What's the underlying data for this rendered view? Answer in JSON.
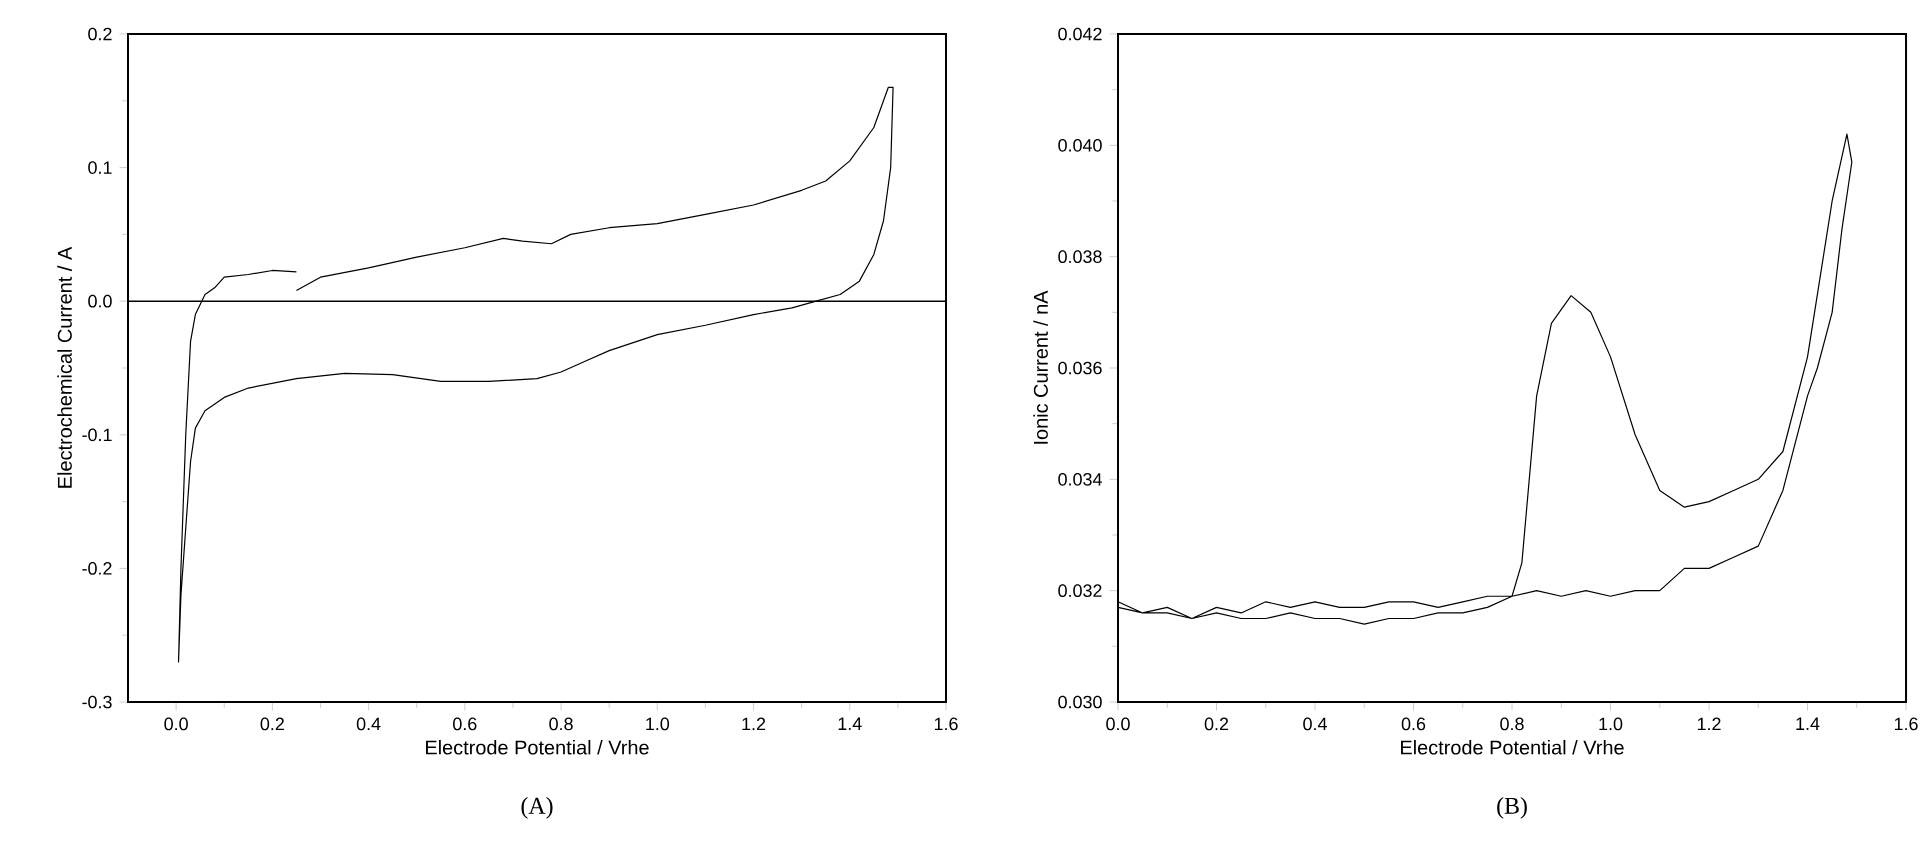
{
  "chart_data": [
    {
      "type": "line",
      "xlabel": "Electrode Potential / Vrhe",
      "ylabel": "Electrochemical Current / A",
      "annotations": [
        "(A)"
      ],
      "xlim": [
        -0.1,
        1.6
      ],
      "ylim": [
        -0.3,
        0.2
      ],
      "xticks": [
        {
          "value": 0,
          "label": "0.0"
        },
        {
          "value": 0.2,
          "label": "0.2"
        },
        {
          "value": 0.4,
          "label": "0.4"
        },
        {
          "value": 0.6,
          "label": "0.6"
        },
        {
          "value": 0.8,
          "label": "0.8"
        },
        {
          "value": 1,
          "label": "1.0"
        },
        {
          "value": 1.2,
          "label": "1.2"
        },
        {
          "value": 1.4,
          "label": "1.4"
        },
        {
          "value": 1.6,
          "label": "1.6"
        }
      ],
      "yticks": [
        {
          "value": -0.3,
          "label": "-0.3"
        },
        {
          "value": -0.2,
          "label": "-0.2"
        },
        {
          "value": -0.1,
          "label": "-0.1"
        },
        {
          "value": 0,
          "label": "0.0"
        },
        {
          "value": 0.1,
          "label": "0.1"
        },
        {
          "value": 0.2,
          "label": "0.2"
        }
      ],
      "ref_lines": [
        {
          "axis": "y",
          "value": 0,
          "color": "#000000"
        }
      ],
      "series": [
        {
          "color": "#000000",
          "x": [
            0.25,
            0.3,
            0.4,
            0.5,
            0.6,
            0.68,
            0.72,
            0.78,
            0.82,
            0.9,
            1.0,
            1.1,
            1.2,
            1.3,
            1.35,
            1.4,
            1.45,
            1.48,
            1.49,
            1.485,
            1.47,
            1.45,
            1.42,
            1.38,
            1.33,
            1.28,
            1.2,
            1.1,
            1.0,
            0.9,
            0.85,
            0.8,
            0.75,
            0.65,
            0.55,
            0.45,
            0.35,
            0.25,
            0.15,
            0.1,
            0.06,
            0.04,
            0.03,
            0.02,
            0.01,
            0.005,
            0.01,
            0.02,
            0.03,
            0.04,
            0.06,
            0.08,
            0.1,
            0.15,
            0.2,
            0.25
          ],
          "values": [
            0.008,
            0.018,
            0.025,
            0.033,
            0.04,
            0.047,
            0.045,
            0.043,
            0.05,
            0.055,
            0.058,
            0.065,
            0.072,
            0.083,
            0.09,
            0.105,
            0.13,
            0.16,
            0.16,
            0.1,
            0.06,
            0.035,
            0.015,
            0.005,
            0,
            -0.005,
            -0.01,
            -0.018,
            -0.025,
            -0.037,
            -0.045,
            -0.053,
            -0.058,
            -0.06,
            -0.06,
            -0.055,
            -0.054,
            -0.058,
            -0.065,
            -0.072,
            -0.082,
            -0.095,
            -0.12,
            -0.17,
            -0.22,
            -0.27,
            -0.2,
            -0.1,
            -0.03,
            -0.01,
            0.005,
            0.01,
            0.018,
            0.02,
            0.023,
            0.022
          ]
        }
      ]
    },
    {
      "type": "line",
      "xlabel": "Electrode Potential / Vrhe",
      "ylabel": "Ionic Current / nA",
      "annotations": [
        "(B)"
      ],
      "xlim": [
        0,
        1.6
      ],
      "ylim": [
        0.03,
        0.042
      ],
      "xticks": [
        {
          "value": 0,
          "label": "0.0"
        },
        {
          "value": 0.2,
          "label": "0.2"
        },
        {
          "value": 0.4,
          "label": "0.4"
        },
        {
          "value": 0.6,
          "label": "0.6"
        },
        {
          "value": 0.8,
          "label": "0.8"
        },
        {
          "value": 1,
          "label": "1.0"
        },
        {
          "value": 1.2,
          "label": "1.2"
        },
        {
          "value": 1.4,
          "label": "1.4"
        },
        {
          "value": 1.6,
          "label": "1.6"
        }
      ],
      "yticks": [
        {
          "value": 0.03,
          "label": "0.030"
        },
        {
          "value": 0.032,
          "label": "0.032"
        },
        {
          "value": 0.034,
          "label": "0.034"
        },
        {
          "value": 0.036,
          "label": "0.036"
        },
        {
          "value": 0.038,
          "label": "0.038"
        },
        {
          "value": 0.04,
          "label": "0.040"
        },
        {
          "value": 0.042,
          "label": "0.042"
        }
      ],
      "series": [
        {
          "color": "#000000",
          "x": [
            0.0,
            0.05,
            0.1,
            0.15,
            0.2,
            0.25,
            0.3,
            0.35,
            0.4,
            0.45,
            0.5,
            0.55,
            0.6,
            0.65,
            0.7,
            0.75,
            0.8,
            0.82,
            0.85,
            0.88,
            0.92,
            0.96,
            1.0,
            1.05,
            1.1,
            1.15,
            1.2,
            1.25,
            1.3,
            1.35,
            1.4,
            1.45,
            1.48,
            1.49,
            1.47,
            1.45,
            1.42,
            1.4,
            1.35,
            1.3,
            1.25,
            1.2,
            1.15,
            1.1,
            1.05,
            1.0,
            0.95,
            0.9,
            0.85,
            0.8,
            0.75,
            0.7,
            0.65,
            0.6,
            0.55,
            0.5,
            0.45,
            0.4,
            0.35,
            0.3,
            0.25,
            0.2,
            0.15,
            0.1,
            0.05,
            0.0
          ],
          "values": [
            0.0318,
            0.0316,
            0.0317,
            0.0315,
            0.0317,
            0.0316,
            0.0318,
            0.0317,
            0.0318,
            0.0317,
            0.0317,
            0.0318,
            0.0318,
            0.0317,
            0.0318,
            0.0319,
            0.0319,
            0.0325,
            0.0355,
            0.0368,
            0.0373,
            0.037,
            0.0362,
            0.0348,
            0.0338,
            0.0335,
            0.0336,
            0.0338,
            0.034,
            0.0345,
            0.0362,
            0.039,
            0.0402,
            0.0397,
            0.0385,
            0.037,
            0.036,
            0.0355,
            0.0338,
            0.0328,
            0.0326,
            0.0324,
            0.0324,
            0.032,
            0.032,
            0.0319,
            0.032,
            0.0319,
            0.032,
            0.0319,
            0.0317,
            0.0316,
            0.0316,
            0.0315,
            0.0315,
            0.0314,
            0.0315,
            0.0315,
            0.0316,
            0.0315,
            0.0315,
            0.0316,
            0.0315,
            0.0316,
            0.0316,
            0.0317
          ]
        }
      ]
    }
  ]
}
